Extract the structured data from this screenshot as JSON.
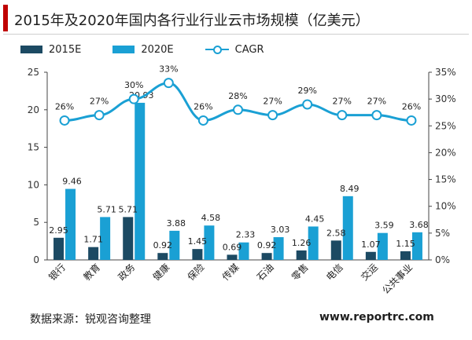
{
  "title": "2015年及2020年国内各行业行业云市场规模（亿美元）",
  "source": "数据来源：锐观咨询整理",
  "site": "www.reportrc.com",
  "colors": {
    "accent": "#c00000",
    "series2015": "#1c4a63",
    "series2020": "#1aa0d4",
    "cagr": "#1aa0d4"
  },
  "chart_data": {
    "type": "bar",
    "categories": [
      "银行",
      "教育",
      "政务",
      "健康",
      "保险",
      "传媒",
      "石油",
      "零售",
      "电信",
      "交运",
      "公共事业"
    ],
    "series": [
      {
        "name": "2015E",
        "type": "bar",
        "axis": "left",
        "values": [
          2.95,
          1.71,
          5.71,
          0.92,
          1.45,
          0.69,
          0.92,
          1.26,
          2.58,
          1.07,
          1.15
        ]
      },
      {
        "name": "2020E",
        "type": "bar",
        "axis": "left",
        "values": [
          9.46,
          5.71,
          20.93,
          3.88,
          4.58,
          2.33,
          3.03,
          4.45,
          8.49,
          3.59,
          3.68
        ]
      },
      {
        "name": "CAGR",
        "type": "line",
        "axis": "right",
        "values": [
          26,
          27,
          30,
          33,
          26,
          28,
          27,
          29,
          27,
          27,
          26
        ],
        "value_labels": [
          "26%",
          "27%",
          "30%",
          "33%",
          "26%",
          "28%",
          "27%",
          "29%",
          "27%",
          "27%",
          "26%"
        ]
      }
    ],
    "value_labels_2015": [
      "2.95",
      "1.71",
      "5.71",
      "0.92",
      "1.45",
      "0.69",
      "0.92",
      "1.26",
      "2.58",
      "1.07",
      "1.15"
    ],
    "value_labels_2020": [
      "9.46",
      "5.71",
      "20.93",
      "3.88",
      "4.58",
      "2.33",
      "3.03",
      "4.45",
      "8.49",
      "3.59",
      "3.68"
    ],
    "ylim": [
      0,
      25
    ],
    "yticks": [
      "0",
      "5",
      "10",
      "15",
      "20",
      "25"
    ],
    "y2lim": [
      0,
      35
    ],
    "y2ticks": [
      "0%",
      "5%",
      "10%",
      "15%",
      "20%",
      "25%",
      "30%",
      "35%"
    ],
    "legend_position": "top-left",
    "grid": false
  }
}
